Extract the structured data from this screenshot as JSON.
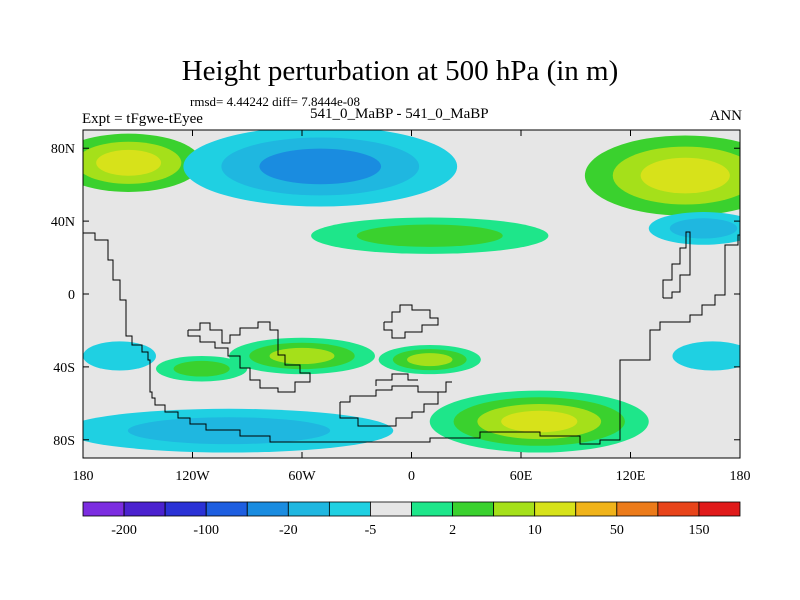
{
  "chart_data": {
    "type": "filled-contour map",
    "title": "Height perturbation at 500 hPa (in m)",
    "stats_line": "rmsd= 4.44242 diff= 7.8444e-08",
    "left_label": "Expt = tFgwe-tEyee",
    "center_label": "541_0_MaBP - 541_0_MaBP",
    "right_label": "ANN",
    "x_axis": {
      "ticks": [
        -180,
        -120,
        -60,
        0,
        60,
        120,
        180
      ],
      "tick_labels": [
        "180",
        "120W",
        "60W",
        "0",
        "60E",
        "120E",
        "180"
      ],
      "range": [
        -180,
        180
      ]
    },
    "y_axis": {
      "ticks": [
        80,
        40,
        0,
        -40,
        -80
      ],
      "tick_labels": [
        "80N",
        "40N",
        "0",
        "40S",
        "80S"
      ],
      "range": [
        -90,
        90
      ]
    },
    "colorbar": {
      "colors": [
        "#7c2de0",
        "#4b22cf",
        "#2b32d6",
        "#1e5ee0",
        "#1a8ce0",
        "#1fb7e0",
        "#1fd0e2",
        "#e6e6e6",
        "#1ee68a",
        "#3ad12e",
        "#a5e01a",
        "#d7e21a",
        "#f0b31a",
        "#ec7b1a",
        "#e8441a",
        "#e01a1a"
      ],
      "labels": [
        {
          "text": "-200",
          "boundary": 1
        },
        {
          "text": "-100",
          "boundary": 3
        },
        {
          "text": "-20",
          "boundary": 5
        },
        {
          "text": "-5",
          "boundary": 7
        },
        {
          "text": "2",
          "boundary": 9
        },
        {
          "text": "10",
          "boundary": 11
        },
        {
          "text": "50",
          "boundary": 13
        },
        {
          "text": "150",
          "boundary": 15
        }
      ]
    },
    "anomaly_regions": [
      {
        "lon": -155,
        "lat": 72,
        "rx": 40,
        "ry": 16,
        "levels": [
          9,
          10,
          11
        ]
      },
      {
        "lon": -50,
        "lat": 70,
        "rx": 75,
        "ry": 22,
        "levels": [
          6,
          5,
          4
        ]
      },
      {
        "lon": 150,
        "lat": 65,
        "rx": 55,
        "ry": 22,
        "levels": [
          9,
          10,
          11
        ]
      },
      {
        "lon": 10,
        "lat": 32,
        "rx": 65,
        "ry": 10,
        "levels": [
          8,
          9
        ]
      },
      {
        "lon": 160,
        "lat": 36,
        "rx": 30,
        "ry": 9,
        "levels": [
          6,
          5
        ]
      },
      {
        "lon": -115,
        "lat": -41,
        "rx": 25,
        "ry": 7,
        "levels": [
          8,
          9
        ]
      },
      {
        "lon": -60,
        "lat": -34,
        "rx": 40,
        "ry": 10,
        "levels": [
          8,
          9,
          10
        ]
      },
      {
        "lon": 10,
        "lat": -36,
        "rx": 28,
        "ry": 8,
        "levels": [
          8,
          9,
          10
        ]
      },
      {
        "lon": -160,
        "lat": -34,
        "rx": 20,
        "ry": 8,
        "levels": [
          6
        ]
      },
      {
        "lon": 165,
        "lat": -34,
        "rx": 22,
        "ry": 8,
        "levels": [
          6
        ]
      },
      {
        "lon": -100,
        "lat": -75,
        "rx": 90,
        "ry": 12,
        "levels": [
          6,
          5
        ]
      },
      {
        "lon": 70,
        "lat": -70,
        "rx": 60,
        "ry": 17,
        "levels": [
          8,
          9,
          10,
          11
        ]
      }
    ]
  }
}
